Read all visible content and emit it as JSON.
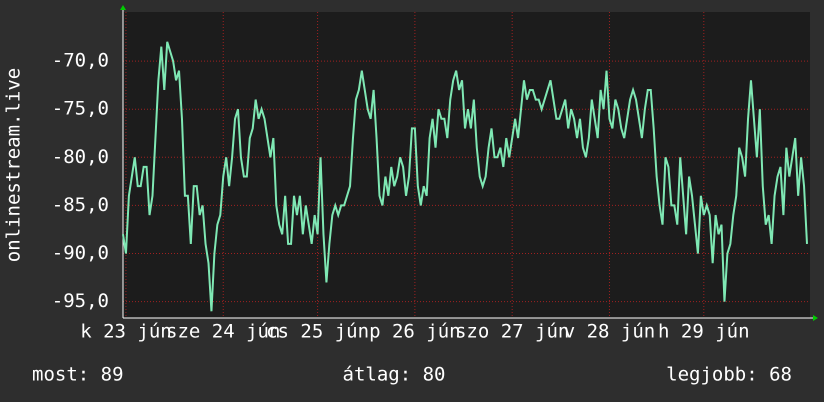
{
  "chart_data": {
    "type": "line",
    "y_label": "onlinestream.live",
    "color": "#7fe8b4",
    "grid": true,
    "xlim": [
      0,
      232
    ],
    "xticks": [
      {
        "value": 1,
        "label": "k 23 jún"
      },
      {
        "value": 34,
        "label": "sze 24 jún"
      },
      {
        "value": 66,
        "label": "cs 25 jún"
      },
      {
        "value": 99,
        "label": "p 26 jún"
      },
      {
        "value": 132,
        "label": "szo 27 jún"
      },
      {
        "value": 165,
        "label": "v 28 jún"
      },
      {
        "value": 197,
        "label": "h 29 jún"
      }
    ],
    "ylim": [
      -96.7,
      -64.9
    ],
    "yticks": [
      {
        "value": -70,
        "label": "-70,0"
      },
      {
        "value": -75,
        "label": "-75,0"
      },
      {
        "value": -80,
        "label": "-80,0"
      },
      {
        "value": -85,
        "label": "-85,0"
      },
      {
        "value": -90,
        "label": "-90,0"
      },
      {
        "value": -95,
        "label": "-95,0"
      }
    ],
    "values": [
      -88,
      -90,
      -84,
      -82,
      -80,
      -83,
      -83,
      -81,
      -81,
      -86,
      -84,
      -78,
      -72,
      -68.5,
      -73,
      -68,
      -69,
      -70,
      -72,
      -71,
      -76,
      -84,
      -84,
      -89,
      -83,
      -83,
      -86,
      -85,
      -89,
      -91,
      -96,
      -90,
      -87,
      -86,
      -82,
      -80,
      -83,
      -80,
      -76,
      -75,
      -80,
      -82,
      -82,
      -78,
      -77,
      -74,
      -76,
      -75,
      -76,
      -78,
      -80,
      -78,
      -85,
      -87,
      -88,
      -84,
      -89,
      -89,
      -84,
      -86,
      -84,
      -88,
      -85,
      -87,
      -89,
      -86,
      -88,
      -80,
      -88,
      -93,
      -89,
      -86,
      -85,
      -86,
      -85,
      -85,
      -84,
      -83,
      -78,
      -74,
      -73,
      -71,
      -73,
      -75,
      -76,
      -73,
      -78,
      -84,
      -85,
      -82,
      -84,
      -81,
      -83,
      -82,
      -80,
      -81,
      -84,
      -82,
      -77,
      -77,
      -83,
      -85,
      -83,
      -84,
      -78,
      -76,
      -79,
      -75,
      -76,
      -76,
      -78,
      -74,
      -72,
      -71,
      -73,
      -72,
      -77,
      -75,
      -77,
      -74,
      -79,
      -82,
      -83,
      -82,
      -79,
      -77,
      -80,
      -80,
      -79,
      -81,
      -78,
      -80,
      -78,
      -76,
      -78,
      -75,
      -72,
      -74,
      -73,
      -73,
      -74,
      -74,
      -75,
      -74,
      -73,
      -72,
      -74,
      -76,
      -76,
      -75,
      -74,
      -77,
      -75,
      -76,
      -78,
      -76,
      -79,
      -80,
      -78,
      -74,
      -76,
      -78,
      -73,
      -75,
      -71,
      -76,
      -77,
      -74,
      -75,
      -77,
      -78,
      -76,
      -74,
      -73,
      -74,
      -76,
      -78,
      -75,
      -73,
      -73,
      -77,
      -82,
      -85,
      -87,
      -80,
      -81,
      -85,
      -85,
      -87,
      -80,
      -84,
      -88,
      -82,
      -84,
      -87,
      -90,
      -84,
      -86,
      -85,
      -86,
      -91,
      -86,
      -88,
      -87,
      -95,
      -90,
      -89,
      -86,
      -84,
      -79,
      -80,
      -82,
      -76,
      -72,
      -76,
      -80,
      -75,
      -83,
      -87,
      -86,
      -89,
      -84,
      -82,
      -81,
      -86,
      -79,
      -82,
      -80,
      -78,
      -84,
      -80,
      -83,
      -89
    ],
    "footer": [
      "most: 89",
      "átlag: 80",
      "legjobb: 68"
    ]
  }
}
